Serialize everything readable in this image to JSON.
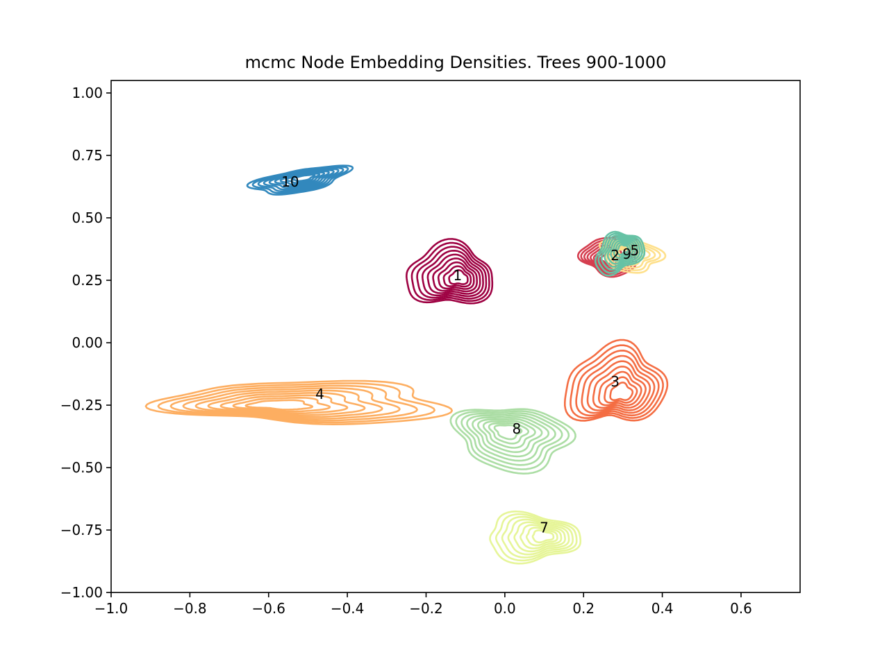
{
  "chart_data": {
    "type": "contour",
    "title": "mcmc Node Embedding Densities. Trees 900-1000",
    "xlabel": "",
    "ylabel": "",
    "xlim": [
      -1.0,
      0.75
    ],
    "ylim": [
      -1.0,
      1.05
    ],
    "grid": false,
    "x_ticks": [
      -1.0,
      -0.8,
      -0.6,
      -0.4,
      -0.2,
      0.0,
      0.2,
      0.4,
      0.6
    ],
    "x_tick_labels": [
      "−1.0",
      "−0.8",
      "−0.6",
      "−0.4",
      "−0.2",
      "0.0",
      "0.2",
      "0.4",
      "0.6"
    ],
    "y_ticks": [
      -1.0,
      -0.75,
      -0.5,
      -0.25,
      0.0,
      0.25,
      0.5,
      0.75,
      1.0
    ],
    "y_tick_labels": [
      "−1.00",
      "−0.75",
      "−0.50",
      "−0.25",
      "0.00",
      "0.25",
      "0.50",
      "0.75",
      "1.00"
    ],
    "clusters": [
      {
        "label": "10",
        "color": "#3288bd",
        "cx": -0.52,
        "cy": 0.65,
        "sx": 0.12,
        "sy": 0.045,
        "tilt": 0.3,
        "levels": 9,
        "label_x": -0.545,
        "label_y": 0.645
      },
      {
        "label": "1",
        "color": "#9e0142",
        "cx": -0.14,
        "cy": 0.27,
        "sx": 0.11,
        "sy": 0.12,
        "tilt": -0.4,
        "levels": 9,
        "label_x": -0.12,
        "label_y": 0.27
      },
      {
        "label": "2",
        "color": "#d53e4f",
        "cx": 0.27,
        "cy": 0.35,
        "sx": 0.075,
        "sy": 0.075,
        "tilt": -0.5,
        "levels": 8,
        "label_x": 0.28,
        "label_y": 0.35
      },
      {
        "label": "5",
        "color": "#fee08b",
        "cx": 0.32,
        "cy": 0.35,
        "sx": 0.08,
        "sy": 0.06,
        "tilt": -0.5,
        "levels": 7,
        "label_x": 0.33,
        "label_y": 0.37
      },
      {
        "label": "9",
        "color": "#66c2a5",
        "cx": 0.29,
        "cy": 0.36,
        "sx": 0.055,
        "sy": 0.085,
        "tilt": -0.3,
        "levels": 8,
        "label_x": 0.31,
        "label_y": 0.355
      },
      {
        "label": "3",
        "color": "#f46d43",
        "cx": 0.28,
        "cy": -0.17,
        "sx": 0.12,
        "sy": 0.16,
        "tilt": -0.2,
        "levels": 9,
        "label_x": 0.28,
        "label_y": -0.155
      },
      {
        "label": "4",
        "color": "#fdae61",
        "cx": -0.5,
        "cy": -0.24,
        "sx": 0.35,
        "sy": 0.085,
        "tilt": 0.0,
        "levels": 9,
        "label_x": -0.47,
        "label_y": -0.205
      },
      {
        "label": "8",
        "color": "#abdda4",
        "cx": 0.02,
        "cy": -0.38,
        "sx": 0.15,
        "sy": 0.12,
        "tilt": -0.2,
        "levels": 9,
        "label_x": 0.03,
        "label_y": -0.345
      },
      {
        "label": "7",
        "color": "#e6f598",
        "cx": 0.07,
        "cy": -0.78,
        "sx": 0.12,
        "sy": 0.09,
        "tilt": -0.1,
        "levels": 8,
        "label_x": 0.1,
        "label_y": -0.74
      }
    ]
  }
}
